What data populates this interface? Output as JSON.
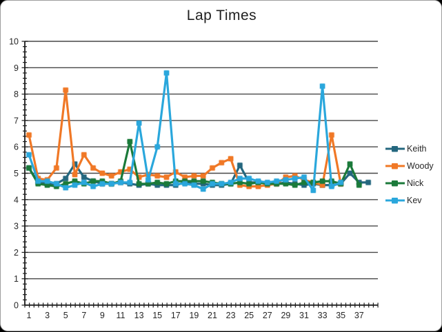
{
  "window_title": "Lap Times chart",
  "chart_data": {
    "type": "line",
    "title": "Lap Times",
    "xlabel": "",
    "ylabel": "",
    "ylim": [
      0,
      10
    ],
    "y_ticks": [
      0,
      1,
      2,
      3,
      4,
      5,
      6,
      7,
      8,
      9,
      10
    ],
    "x_tick_labels": [
      1,
      3,
      5,
      7,
      9,
      11,
      13,
      15,
      17,
      19,
      21,
      23,
      25,
      27,
      29,
      31,
      33,
      35,
      37
    ],
    "x_categories_max": 38,
    "grid": "horizontal-major",
    "legend_position": "right",
    "axis_color": "#1a1a1a",
    "gridline_color": "#474747",
    "label_color": "#262626",
    "series": [
      {
        "name": "Keith",
        "color": "#24677f",
        "values": [
          5.2,
          4.65,
          4.6,
          4.6,
          4.8,
          5.35,
          4.85,
          4.7,
          4.6,
          4.6,
          4.65,
          4.6,
          4.55,
          4.6,
          4.55,
          4.55,
          4.55,
          4.65,
          4.6,
          4.6,
          4.55,
          4.55,
          4.6,
          5.3,
          4.65,
          4.65,
          4.6,
          4.6,
          4.65,
          4.6,
          4.55,
          4.6,
          4.55,
          4.55,
          4.6,
          5.0,
          4.65,
          4.65
        ]
      },
      {
        "name": "Woody",
        "color": "#f07826",
        "values": [
          6.45,
          4.8,
          4.75,
          5.2,
          8.15,
          4.95,
          5.7,
          5.2,
          5.0,
          4.9,
          5.05,
          5.15,
          4.85,
          4.95,
          4.9,
          4.85,
          5.05,
          4.85,
          4.9,
          4.9,
          5.2,
          5.4,
          5.55,
          4.55,
          4.5,
          4.5,
          4.55,
          4.6,
          4.85,
          4.9,
          4.75,
          4.65,
          4.55,
          6.45,
          4.6
        ]
      },
      {
        "name": "Nick",
        "color": "#1b7a3a",
        "values": [
          5.2,
          4.6,
          4.55,
          4.5,
          4.6,
          4.7,
          4.6,
          4.7,
          4.7,
          4.6,
          4.7,
          6.2,
          4.6,
          4.6,
          4.65,
          4.6,
          4.7,
          4.7,
          4.7,
          4.7,
          4.65,
          4.6,
          4.6,
          4.65,
          4.6,
          4.65,
          4.6,
          4.6,
          4.6,
          4.55,
          4.65,
          4.65,
          4.7,
          4.7,
          4.6,
          5.35,
          4.55
        ]
      },
      {
        "name": "Kev",
        "color": "#2aa7dc",
        "values": [
          5.7,
          4.7,
          4.7,
          4.6,
          4.45,
          4.55,
          4.65,
          4.5,
          4.6,
          4.6,
          4.65,
          4.65,
          6.9,
          4.75,
          6.0,
          8.8,
          4.6,
          4.6,
          4.55,
          4.4,
          4.6,
          4.6,
          4.65,
          4.8,
          4.8,
          4.7,
          4.65,
          4.7,
          4.75,
          4.8,
          4.85,
          4.35,
          8.3,
          4.5,
          4.65
        ]
      }
    ]
  }
}
